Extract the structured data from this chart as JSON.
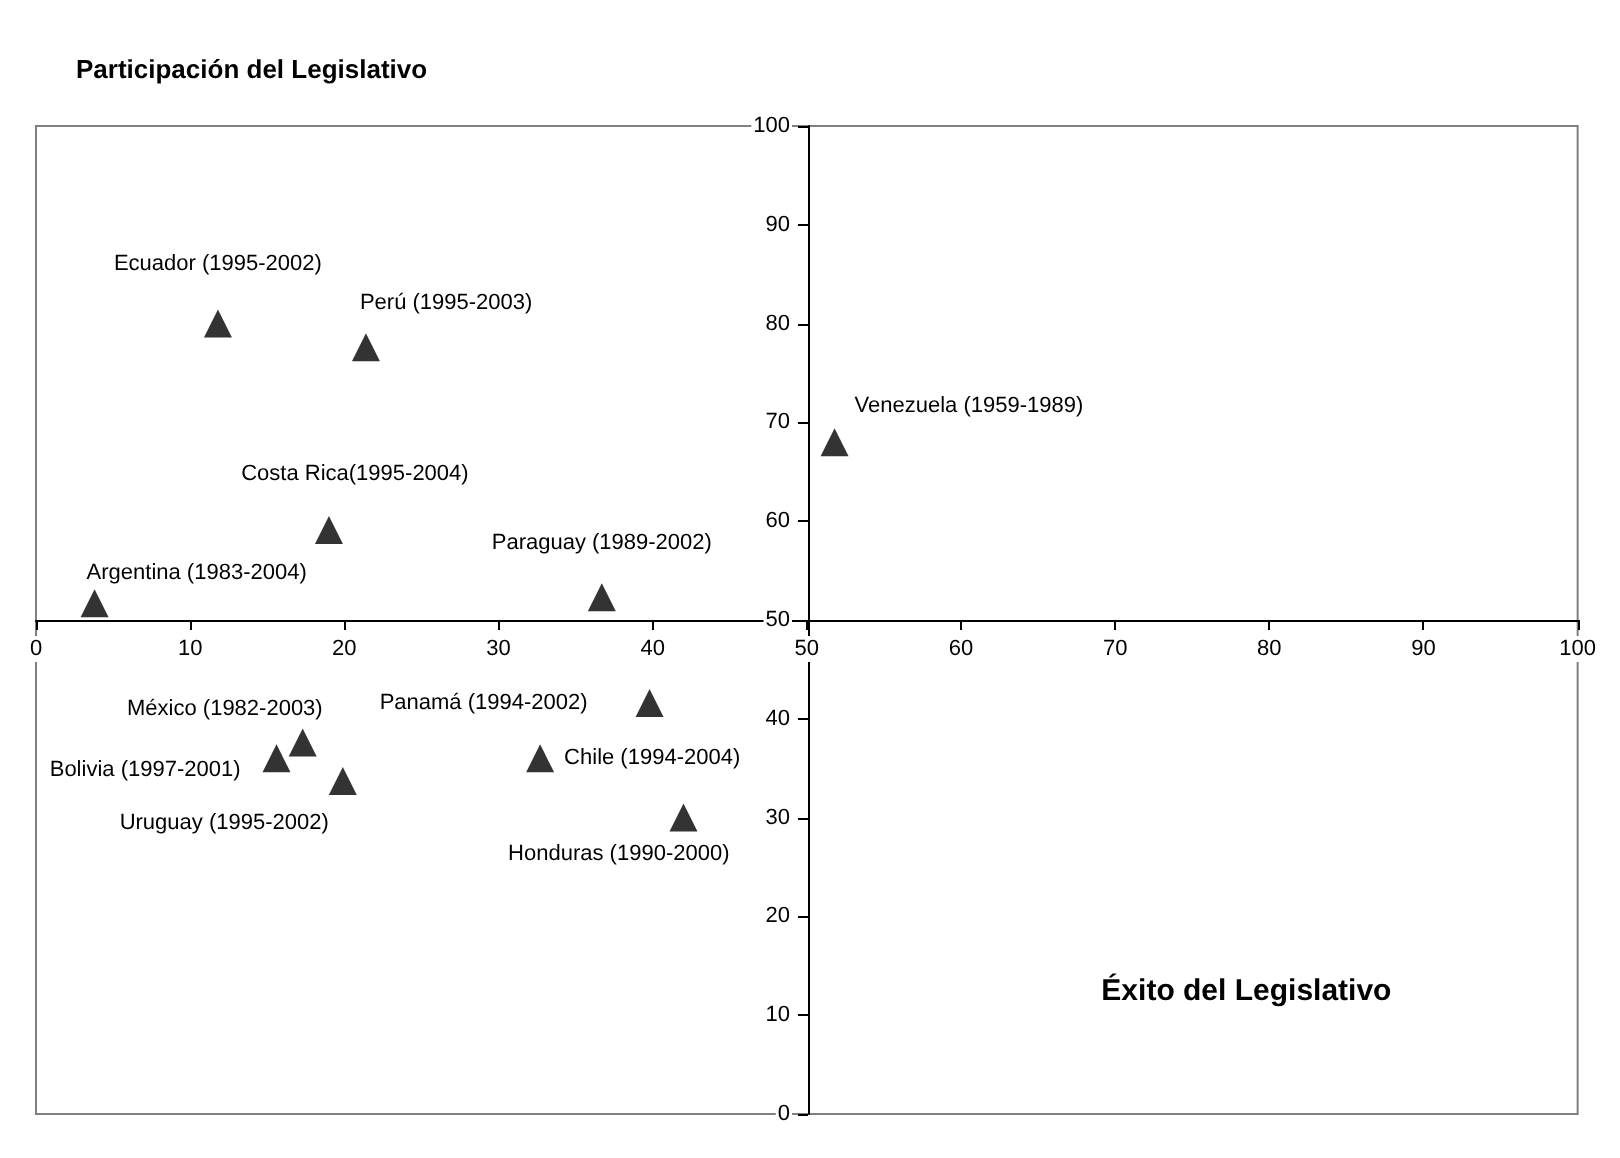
{
  "chart_data": {
    "type": "scatter",
    "ylabel": "Participación del Legislativo",
    "xlabel": "Éxito del Legislativo",
    "x": [
      11.8,
      21.4,
      19.0,
      3.8,
      36.7,
      51.8,
      17.3,
      15.6,
      19.9,
      39.8,
      32.7,
      42.0
    ],
    "series": [
      {
        "color": "#000000",
        "values": [
          80,
          77.6,
          59.1,
          51.7,
          52.3,
          68,
          37.6,
          36,
          33.7,
          41.6,
          36,
          30
        ]
      }
    ],
    "xlim": [
      0,
      100
    ],
    "ylim": [
      0,
      100
    ],
    "xticks": [
      0,
      10,
      20,
      30,
      40,
      50,
      60,
      70,
      80,
      90,
      100
    ],
    "yticks": [
      0,
      10,
      20,
      30,
      40,
      50,
      60,
      70,
      80,
      90,
      100
    ],
    "grid": false,
    "marker": "triangle",
    "annotations": [
      {
        "text": "Ecuador (1995-2002)",
        "x": 11.8,
        "y": 80
      },
      {
        "text": "Perú (1995-2003)",
        "x": 21.4,
        "y": 77.6
      },
      {
        "text": "Costa Rica(1995-2004)",
        "x": 19.0,
        "y": 59.1
      },
      {
        "text": "Argentina (1983-2004)",
        "x": 3.8,
        "y": 51.7
      },
      {
        "text": "Paraguay (1989-2002)",
        "x": 36.7,
        "y": 52.3
      },
      {
        "text": "Venezuela (1959-1989)",
        "x": 51.8,
        "y": 68
      },
      {
        "text": "México (1982-2003)",
        "x": 17.3,
        "y": 37.6
      },
      {
        "text": "Bolivia (1997-2001)",
        "x": 15.6,
        "y": 36
      },
      {
        "text": "Uruguay (1995-2002)",
        "x": 19.9,
        "y": 33.7
      },
      {
        "text": "Panamá (1994-2002)",
        "x": 39.8,
        "y": 41.6
      },
      {
        "text": "Chile (1994-2004)",
        "x": 32.7,
        "y": 36
      },
      {
        "text": "Honduras (1990-2000)",
        "x": 42.0,
        "y": 30
      }
    ]
  }
}
